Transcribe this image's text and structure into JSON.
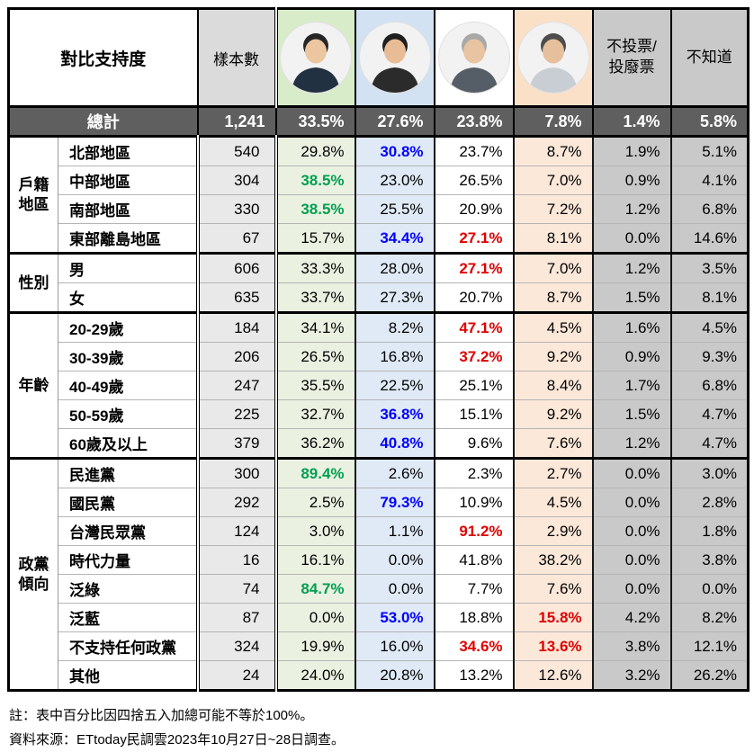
{
  "colors": {
    "total_row_bg": "#5f5f5f",
    "total_row_text": "#ffffff",
    "sample_header_bg": "#dbdbdb",
    "sample_col_bg": "#e9e9e9",
    "candidate1_header_bg": "#d9ecc9",
    "candidate1_col_bg": "#eaf1e1",
    "candidate2_header_bg": "#d2e2f2",
    "candidate2_col_bg": "#dfeaf6",
    "candidate3_header_bg": "#ffffff",
    "candidate3_col_bg": "#ffffff",
    "candidate4_header_bg": "#fbe0c8",
    "candidate4_col_bg": "#fce8d9",
    "gray_col_bg": "#c9c9c9",
    "highlight_green": "#00a050",
    "highlight_blue": "#0000ff",
    "highlight_red": "#e00000"
  },
  "chart_data": {
    "type": "table",
    "title": "對比支持度",
    "header": {
      "support_label": "對比支持度",
      "sample_label": "樣本數",
      "candidate_photos": [
        "candidate-1-photo",
        "candidate-2-photo",
        "candidate-3-photo",
        "candidate-4-photo"
      ],
      "no_vote_label": "不投票/\n投廢票",
      "dont_know_label": "不知道"
    },
    "total": {
      "label": "總計",
      "sample": "1,241",
      "values": [
        "33.5%",
        "27.6%",
        "23.8%",
        "7.8%",
        "1.4%",
        "5.8%"
      ]
    },
    "sections": [
      {
        "category": "戶籍地區",
        "rows": [
          {
            "label": "北部地區",
            "sample": "540",
            "values": [
              "29.8%",
              "30.8%",
              "23.7%",
              "8.7%",
              "1.9%",
              "5.1%"
            ],
            "colors": [
              "k",
              "b",
              "k",
              "k",
              "k",
              "k"
            ]
          },
          {
            "label": "中部地區",
            "sample": "304",
            "values": [
              "38.5%",
              "23.0%",
              "26.5%",
              "7.0%",
              "0.9%",
              "4.1%"
            ],
            "colors": [
              "g",
              "k",
              "k",
              "k",
              "k",
              "k"
            ]
          },
          {
            "label": "南部地區",
            "sample": "330",
            "values": [
              "38.5%",
              "25.5%",
              "20.9%",
              "7.2%",
              "1.2%",
              "6.8%"
            ],
            "colors": [
              "g",
              "k",
              "k",
              "k",
              "k",
              "k"
            ]
          },
          {
            "label": "東部離島地區",
            "sample": "67",
            "values": [
              "15.7%",
              "34.4%",
              "27.1%",
              "8.1%",
              "0.0%",
              "14.6%"
            ],
            "colors": [
              "k",
              "b",
              "r",
              "k",
              "k",
              "k"
            ]
          }
        ]
      },
      {
        "category": "性別",
        "rows": [
          {
            "label": "男",
            "sample": "606",
            "values": [
              "33.3%",
              "28.0%",
              "27.1%",
              "7.0%",
              "1.2%",
              "3.5%"
            ],
            "colors": [
              "k",
              "k",
              "r",
              "k",
              "k",
              "k"
            ]
          },
          {
            "label": "女",
            "sample": "635",
            "values": [
              "33.7%",
              "27.3%",
              "20.7%",
              "8.7%",
              "1.5%",
              "8.1%"
            ],
            "colors": [
              "k",
              "k",
              "k",
              "k",
              "k",
              "k"
            ]
          }
        ]
      },
      {
        "category": "年齡",
        "rows": [
          {
            "label": "20-29歲",
            "sample": "184",
            "values": [
              "34.1%",
              "8.2%",
              "47.1%",
              "4.5%",
              "1.6%",
              "4.5%"
            ],
            "colors": [
              "k",
              "k",
              "r",
              "k",
              "k",
              "k"
            ]
          },
          {
            "label": "30-39歲",
            "sample": "206",
            "values": [
              "26.5%",
              "16.8%",
              "37.2%",
              "9.2%",
              "0.9%",
              "9.3%"
            ],
            "colors": [
              "k",
              "k",
              "r",
              "k",
              "k",
              "k"
            ]
          },
          {
            "label": "40-49歲",
            "sample": "247",
            "values": [
              "35.5%",
              "22.5%",
              "25.1%",
              "8.4%",
              "1.7%",
              "6.8%"
            ],
            "colors": [
              "k",
              "k",
              "k",
              "k",
              "k",
              "k"
            ]
          },
          {
            "label": "50-59歲",
            "sample": "225",
            "values": [
              "32.7%",
              "36.8%",
              "15.1%",
              "9.2%",
              "1.5%",
              "4.7%"
            ],
            "colors": [
              "k",
              "b",
              "k",
              "k",
              "k",
              "k"
            ]
          },
          {
            "label": "60歲及以上",
            "sample": "379",
            "values": [
              "36.2%",
              "40.8%",
              "9.6%",
              "7.6%",
              "1.2%",
              "4.7%"
            ],
            "colors": [
              "k",
              "b",
              "k",
              "k",
              "k",
              "k"
            ]
          }
        ]
      },
      {
        "category": "政黨傾向",
        "rows": [
          {
            "label": "民進黨",
            "sample": "300",
            "values": [
              "89.4%",
              "2.6%",
              "2.3%",
              "2.7%",
              "0.0%",
              "3.0%"
            ],
            "colors": [
              "g",
              "k",
              "k",
              "k",
              "k",
              "k"
            ]
          },
          {
            "label": "國民黨",
            "sample": "292",
            "values": [
              "2.5%",
              "79.3%",
              "10.9%",
              "4.5%",
              "0.0%",
              "2.8%"
            ],
            "colors": [
              "k",
              "b",
              "k",
              "k",
              "k",
              "k"
            ]
          },
          {
            "label": "台灣民眾黨",
            "sample": "124",
            "values": [
              "3.0%",
              "1.1%",
              "91.2%",
              "2.9%",
              "0.0%",
              "1.8%"
            ],
            "colors": [
              "k",
              "k",
              "r",
              "k",
              "k",
              "k"
            ]
          },
          {
            "label": "時代力量",
            "sample": "16",
            "values": [
              "16.1%",
              "0.0%",
              "41.8%",
              "38.2%",
              "0.0%",
              "3.8%"
            ],
            "colors": [
              "k",
              "k",
              "k",
              "k",
              "k",
              "k"
            ]
          },
          {
            "label": "泛綠",
            "sample": "74",
            "values": [
              "84.7%",
              "0.0%",
              "7.7%",
              "7.6%",
              "0.0%",
              "0.0%"
            ],
            "colors": [
              "g",
              "k",
              "k",
              "k",
              "k",
              "k"
            ]
          },
          {
            "label": "泛藍",
            "sample": "87",
            "values": [
              "0.0%",
              "53.0%",
              "18.8%",
              "15.8%",
              "4.2%",
              "8.2%"
            ],
            "colors": [
              "k",
              "b",
              "k",
              "r",
              "k",
              "k"
            ]
          },
          {
            "label": "不支持任何政黨",
            "sample": "324",
            "values": [
              "19.9%",
              "16.0%",
              "34.6%",
              "13.6%",
              "3.8%",
              "12.1%"
            ],
            "colors": [
              "k",
              "k",
              "r",
              "r",
              "k",
              "k"
            ]
          },
          {
            "label": "其他",
            "sample": "24",
            "values": [
              "24.0%",
              "20.8%",
              "13.2%",
              "12.6%",
              "3.2%",
              "26.2%"
            ],
            "colors": [
              "k",
              "k",
              "k",
              "k",
              "k",
              "k"
            ]
          }
        ]
      }
    ]
  },
  "notes": [
    "註：表中百分比因四捨五入加總可能不等於100%。",
    "資料來源：ETtoday民調雲2023年10月27日~28日調查。"
  ]
}
